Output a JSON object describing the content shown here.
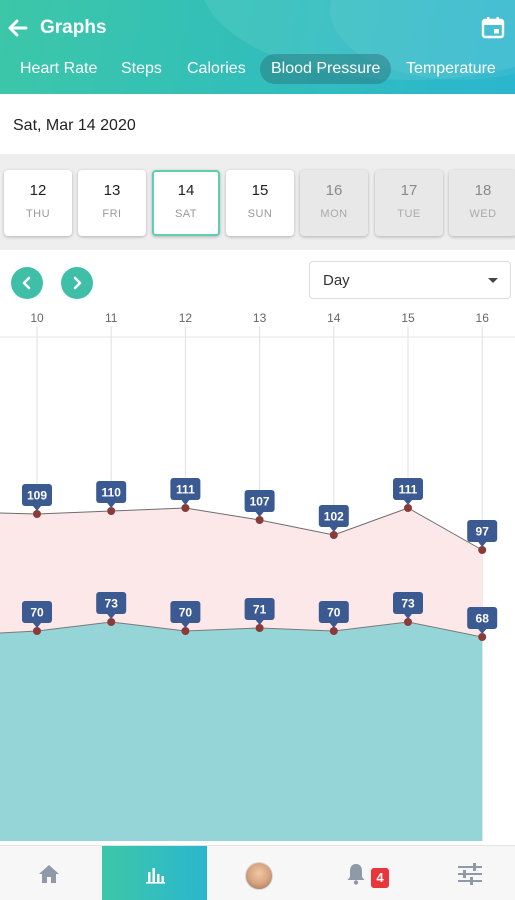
{
  "header": {
    "title": "Graphs",
    "tabs": [
      "Heart Rate",
      "Steps",
      "Calories",
      "Blood Pressure",
      "Temperature"
    ],
    "active_tab": "Blood Pressure",
    "icons": {
      "back": "arrow-left-icon",
      "calendar": "calendar-icon"
    }
  },
  "date": {
    "text": "Sat, Mar 14 2020"
  },
  "days": [
    {
      "num": "12",
      "name": "THU",
      "state": "past"
    },
    {
      "num": "13",
      "name": "FRI",
      "state": "past"
    },
    {
      "num": "14",
      "name": "SAT",
      "state": "selected"
    },
    {
      "num": "15",
      "name": "SUN",
      "state": "past"
    },
    {
      "num": "16",
      "name": "MON",
      "state": "future"
    },
    {
      "num": "17",
      "name": "TUE",
      "state": "future"
    },
    {
      "num": "18",
      "name": "WED",
      "state": "future"
    }
  ],
  "controls": {
    "range_select": "Day"
  },
  "chart_data": {
    "type": "area",
    "x": [
      "10",
      "11",
      "12",
      "13",
      "14",
      "15",
      "16"
    ],
    "series": [
      {
        "values": [
          109,
          110,
          111,
          107,
          102,
          111,
          97
        ],
        "color": "#fce8e8"
      },
      {
        "values": [
          70,
          73,
          70,
          71,
          70,
          73,
          68
        ],
        "color": "#95d5d7"
      }
    ],
    "ylim": [
      0,
      160
    ],
    "grid": "vertical",
    "label_color": "#3c5a92",
    "point_color": "#8b3a3a"
  },
  "bottom_nav": {
    "items": [
      "home-icon",
      "bar-chart-icon",
      "avatar",
      "bell-icon",
      "sliders-icon"
    ],
    "active": "bar-chart-icon",
    "notifications": "4"
  }
}
